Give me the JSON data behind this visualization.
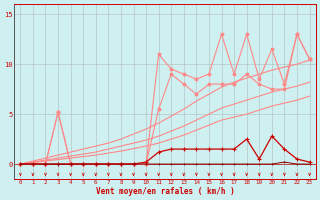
{
  "x": [
    0,
    1,
    2,
    3,
    4,
    5,
    6,
    7,
    8,
    9,
    10,
    11,
    12,
    13,
    14,
    15,
    16,
    17,
    18,
    19,
    20,
    21,
    22,
    23
  ],
  "line_rafales": [
    0,
    0,
    0,
    5.2,
    0,
    0,
    0,
    0,
    0,
    0,
    0,
    11.0,
    9.5,
    9.0,
    8.5,
    9.0,
    13.0,
    9.0,
    13.0,
    8.5,
    11.5,
    8.0,
    13.0,
    10.5
  ],
  "line_moyen": [
    0,
    0,
    0,
    5.2,
    0,
    0,
    0,
    0,
    0,
    0,
    0,
    5.5,
    9.0,
    8.0,
    7.0,
    8.0,
    8.0,
    8.0,
    9.0,
    8.0,
    7.5,
    7.5,
    13.0,
    10.5
  ],
  "line_trend_upper": [
    0,
    0.3,
    0.6,
    0.9,
    1.2,
    1.5,
    1.8,
    2.1,
    2.5,
    3.0,
    3.5,
    4.1,
    4.8,
    5.5,
    6.3,
    7.0,
    7.7,
    8.2,
    8.6,
    9.0,
    9.4,
    9.7,
    10.0,
    10.4
  ],
  "line_trend_mid": [
    0,
    0.2,
    0.4,
    0.6,
    0.8,
    1.0,
    1.2,
    1.5,
    1.8,
    2.1,
    2.4,
    2.8,
    3.3,
    3.8,
    4.4,
    5.0,
    5.6,
    6.0,
    6.4,
    6.8,
    7.2,
    7.5,
    7.8,
    8.2
  ],
  "line_trend_lower": [
    0,
    0.15,
    0.3,
    0.45,
    0.6,
    0.75,
    0.9,
    1.1,
    1.3,
    1.55,
    1.8,
    2.1,
    2.5,
    2.9,
    3.4,
    3.9,
    4.4,
    4.7,
    5.0,
    5.4,
    5.8,
    6.1,
    6.4,
    6.8
  ],
  "line_dark_upper": [
    0,
    0,
    0,
    0,
    0,
    0,
    0,
    0,
    0,
    0,
    0.2,
    1.2,
    1.5,
    1.5,
    1.5,
    1.5,
    1.5,
    1.5,
    2.5,
    0.5,
    2.8,
    1.5,
    0.5,
    0.2
  ],
  "line_dark_lower": [
    0,
    0,
    0,
    0,
    0,
    0,
    0,
    0,
    0,
    0,
    0,
    0,
    0,
    0,
    0,
    0,
    0,
    0,
    0,
    0,
    0,
    0.2,
    0,
    0
  ],
  "bg_color": "#cff0f0",
  "grid_color": "#999999",
  "line_light": "#ff8888",
  "line_dark": "#cc0000",
  "line_vdark": "#880000",
  "xlabel": "Vent moyen/en rafales ( km/h )",
  "yticks": [
    0,
    5,
    10,
    15
  ],
  "xticks": [
    0,
    1,
    2,
    3,
    4,
    5,
    6,
    7,
    8,
    9,
    10,
    11,
    12,
    13,
    14,
    15,
    16,
    17,
    18,
    19,
    20,
    21,
    22,
    23
  ],
  "ylim": [
    -1.5,
    16
  ],
  "xlim": [
    -0.5,
    23.5
  ]
}
